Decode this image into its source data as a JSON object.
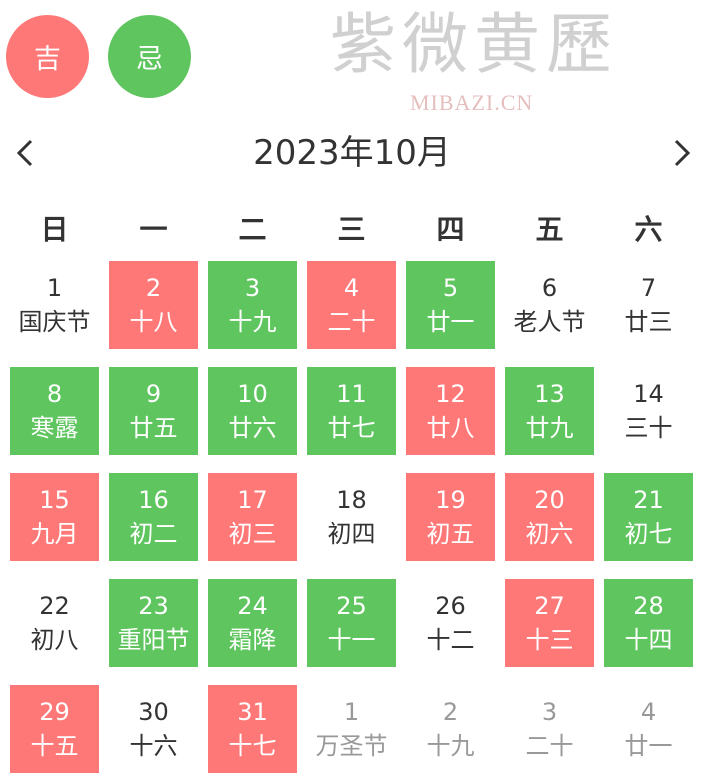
{
  "legend": {
    "good_label": "吉",
    "bad_label": "忌",
    "good_color": "#ff7878",
    "bad_color": "#5fc55f"
  },
  "header": {
    "title": "2023年10月",
    "prev_icon": "chevron-left-icon",
    "next_icon": "chevron-right-icon"
  },
  "weekdays": [
    "日",
    "一",
    "二",
    "三",
    "四",
    "五",
    "六"
  ],
  "days": [
    {
      "day": "1",
      "lunar": "国庆节",
      "state": "plain"
    },
    {
      "day": "2",
      "lunar": "十八",
      "state": "good"
    },
    {
      "day": "3",
      "lunar": "十九",
      "state": "bad"
    },
    {
      "day": "4",
      "lunar": "二十",
      "state": "good"
    },
    {
      "day": "5",
      "lunar": "廿一",
      "state": "bad"
    },
    {
      "day": "6",
      "lunar": "老人节",
      "state": "plain"
    },
    {
      "day": "7",
      "lunar": "廿三",
      "state": "plain"
    },
    {
      "day": "8",
      "lunar": "寒露",
      "state": "bad"
    },
    {
      "day": "9",
      "lunar": "廿五",
      "state": "bad"
    },
    {
      "day": "10",
      "lunar": "廿六",
      "state": "bad"
    },
    {
      "day": "11",
      "lunar": "廿七",
      "state": "bad"
    },
    {
      "day": "12",
      "lunar": "廿八",
      "state": "good"
    },
    {
      "day": "13",
      "lunar": "廿九",
      "state": "bad"
    },
    {
      "day": "14",
      "lunar": "三十",
      "state": "plain"
    },
    {
      "day": "15",
      "lunar": "九月",
      "state": "good"
    },
    {
      "day": "16",
      "lunar": "初二",
      "state": "bad"
    },
    {
      "day": "17",
      "lunar": "初三",
      "state": "good"
    },
    {
      "day": "18",
      "lunar": "初四",
      "state": "plain"
    },
    {
      "day": "19",
      "lunar": "初五",
      "state": "good"
    },
    {
      "day": "20",
      "lunar": "初六",
      "state": "good"
    },
    {
      "day": "21",
      "lunar": "初七",
      "state": "bad"
    },
    {
      "day": "22",
      "lunar": "初八",
      "state": "plain"
    },
    {
      "day": "23",
      "lunar": "重阳节",
      "state": "bad"
    },
    {
      "day": "24",
      "lunar": "霜降",
      "state": "bad"
    },
    {
      "day": "25",
      "lunar": "十一",
      "state": "bad"
    },
    {
      "day": "26",
      "lunar": "十二",
      "state": "plain"
    },
    {
      "day": "27",
      "lunar": "十三",
      "state": "good"
    },
    {
      "day": "28",
      "lunar": "十四",
      "state": "bad"
    },
    {
      "day": "29",
      "lunar": "十五",
      "state": "good"
    },
    {
      "day": "30",
      "lunar": "十六",
      "state": "plain"
    },
    {
      "day": "31",
      "lunar": "十七",
      "state": "good"
    },
    {
      "day": "1",
      "lunar": "万圣节",
      "state": "other"
    },
    {
      "day": "2",
      "lunar": "十九",
      "state": "other"
    },
    {
      "day": "3",
      "lunar": "二十",
      "state": "other"
    },
    {
      "day": "4",
      "lunar": "廿一",
      "state": "other"
    }
  ],
  "watermark": {
    "cn": "紫微黄歷",
    "en": "MIBAZI.CN"
  }
}
